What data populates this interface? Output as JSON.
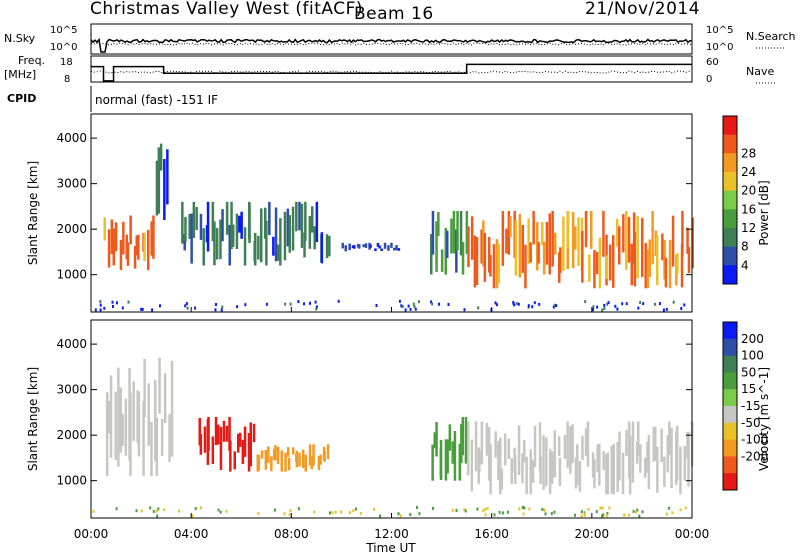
{
  "header": {
    "radar": "Christmas Valley West (fitACF)",
    "beam": "Beam 16",
    "date": "21/Nov/2014"
  },
  "panels": {
    "nsky_label": "N.Sky",
    "nsky_ticks": [
      "10^5",
      "10^0"
    ],
    "nsearch_label": "N.Search",
    "freq_label": "Freq.",
    "freq_unit": "[MHz]",
    "freq_ticks": [
      "18",
      "8"
    ],
    "nave_ticks": [
      "60",
      "0"
    ],
    "nave_label": "Nave",
    "cpid_label": "CPID",
    "cpid_value": "normal (fast) -151 IF"
  },
  "colors": {
    "power": [
      "#0a1bf5",
      "#2f4ea8",
      "#3f7f56",
      "#4a9d3c",
      "#7acb4a",
      "#e8c227",
      "#f39a22",
      "#ee5a1d",
      "#e51a14"
    ],
    "velocity": [
      "#0a1bf5",
      "#2f4ea8",
      "#3f7f56",
      "#4a9d3c",
      "#7acb4a",
      "#c6c6c2",
      "#e8c227",
      "#f39a22",
      "#ee5a1d",
      "#e51a14"
    ],
    "ground_scatter": "#c6c6c2"
  },
  "chart_data": [
    {
      "type": "heatmap",
      "title": "Power",
      "xlabel": "Time UT",
      "ylabel": "Slant Range [km]",
      "x_ticks": [
        "00:00",
        "04:00",
        "08:00",
        "12:00",
        "16:00",
        "20:00",
        "00:00"
      ],
      "xlim_hours": [
        0,
        24
      ],
      "y_ticks": [
        1000,
        2000,
        3000,
        4000
      ],
      "ylim_km": [
        180,
        4530
      ],
      "colorbar": {
        "label": "Power [dB]",
        "ticks": [
          4,
          8,
          12,
          16,
          20,
          24,
          28
        ],
        "range": [
          0,
          32
        ]
      },
      "echo_regions": [
        {
          "hours": [
            0.5,
            2.5
          ],
          "range_km": [
            1100,
            2300
          ],
          "power_db": 28
        },
        {
          "hours": [
            2.5,
            3.1
          ],
          "range_km": [
            2200,
            4200
          ],
          "power_db": 8
        },
        {
          "hours": [
            3.5,
            9.5
          ],
          "range_km": [
            1200,
            2600
          ],
          "power_db": 8
        },
        {
          "hours": [
            10.0,
            12.3
          ],
          "range_km": [
            1500,
            1700
          ],
          "power_db": 4
        },
        {
          "hours": [
            13.5,
            15.0
          ],
          "range_km": [
            1000,
            2400
          ],
          "power_db": 12
        },
        {
          "hours": [
            15.0,
            24.0
          ],
          "range_km": [
            700,
            2400
          ],
          "power_db": 28
        }
      ]
    },
    {
      "type": "heatmap",
      "title": "Velocity",
      "xlabel": "Time UT",
      "ylabel": "Slant Range [km]",
      "x_ticks": [
        "00:00",
        "04:00",
        "08:00",
        "12:00",
        "16:00",
        "20:00",
        "00:00"
      ],
      "xlim_hours": [
        0,
        24
      ],
      "y_ticks": [
        1000,
        2000,
        3000,
        4000
      ],
      "ylim_km": [
        180,
        4530
      ],
      "colorbar": {
        "label": "Velocity [m s^-1]",
        "ticks": [
          -200,
          -100,
          -50,
          -15,
          15,
          50,
          100,
          200
        ],
        "range": [
          -250,
          250
        ]
      },
      "echo_regions": [
        {
          "hours": [
            0.5,
            3.2
          ],
          "range_km": [
            1100,
            3700
          ],
          "velocity": 0
        },
        {
          "hours": [
            4.2,
            6.5
          ],
          "range_km": [
            1200,
            2400
          ],
          "velocity": -200
        },
        {
          "hours": [
            6.5,
            9.5
          ],
          "range_km": [
            1200,
            1800
          ],
          "velocity": -80
        },
        {
          "hours": [
            13.5,
            15.0
          ],
          "range_km": [
            1000,
            2400
          ],
          "velocity": 50
        },
        {
          "hours": [
            15.0,
            24.0
          ],
          "range_km": [
            700,
            2300
          ],
          "velocity": 0
        }
      ]
    }
  ]
}
